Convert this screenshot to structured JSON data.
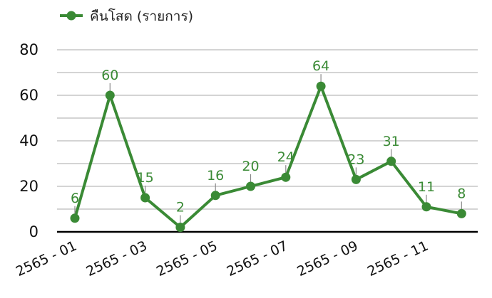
{
  "chart_data": {
    "type": "line",
    "title": "",
    "xlabel": "",
    "ylabel": "",
    "categories": [
      "2565 - 01",
      "2565 - 02",
      "2565 - 03",
      "2565 - 04",
      "2565 - 05",
      "2565 - 06",
      "2565 - 07",
      "2565 - 08",
      "2565 - 09",
      "2565 - 10",
      "2565 - 11",
      "2565 - 12"
    ],
    "x_tick_labels": [
      "2565 - 01",
      "2565 - 03",
      "2565 - 05",
      "2565 - 07",
      "2565 - 09",
      "2565 - 11"
    ],
    "y_ticks": [
      "0",
      "20",
      "40",
      "60",
      "80"
    ],
    "ylim": [
      0,
      80
    ],
    "grid": true,
    "legend_position": "top-left",
    "series": [
      {
        "name": "คืนโสด (รายการ)",
        "color": "#3a8a35",
        "values": [
          6,
          60,
          15,
          2,
          16,
          20,
          24,
          64,
          23,
          31,
          11,
          8
        ]
      }
    ]
  }
}
